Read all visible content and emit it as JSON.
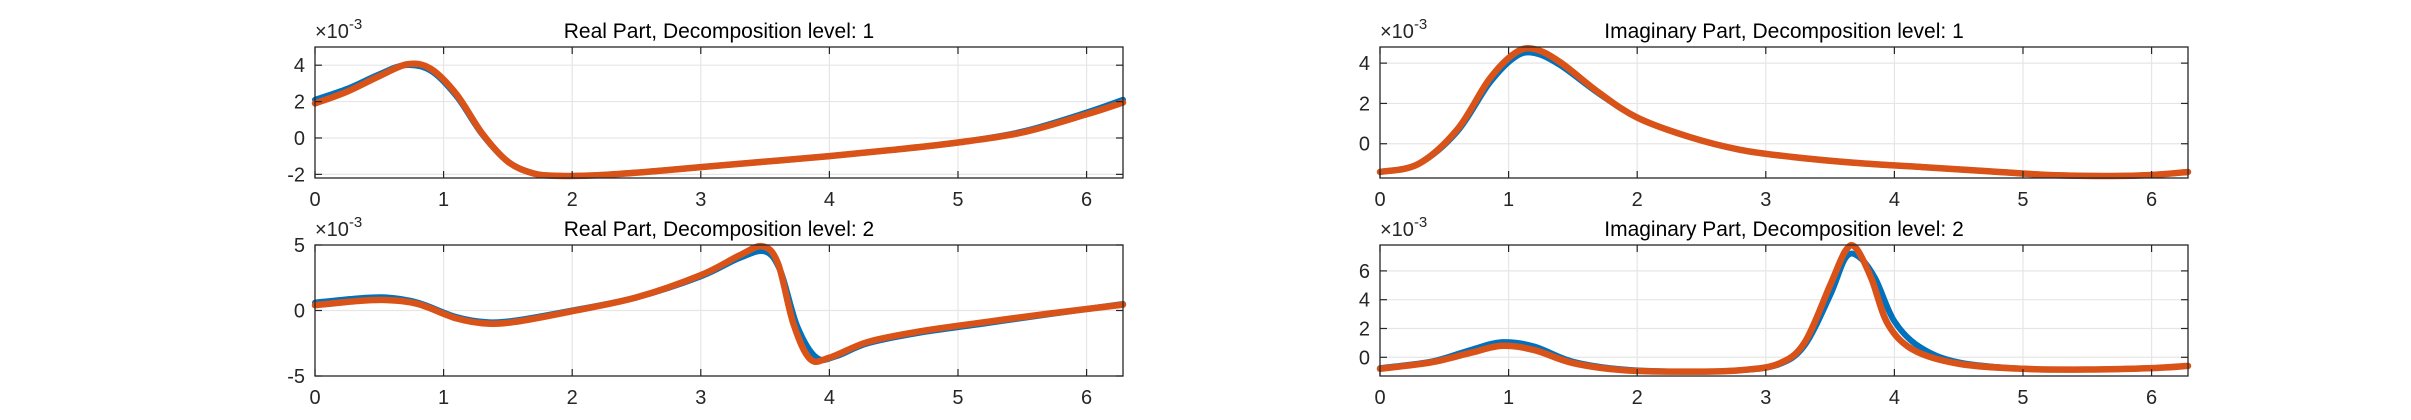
{
  "colors": {
    "series1": "#0072BD",
    "series2": "#D95319",
    "grid": "#e6e6e6",
    "axis": "#262626"
  },
  "chart_data": [
    {
      "type": "line",
      "title": "Real Part, Decomposition level: 1",
      "exponent_label": "×10",
      "exponent": "-3",
      "xlim": [
        0,
        6.2832
      ],
      "ylim": [
        -2.2,
        5.0
      ],
      "xticks": [
        0,
        1,
        2,
        3,
        4,
        5,
        6
      ],
      "yticks": [
        -2,
        0,
        2,
        4
      ],
      "grid": true,
      "series": [
        {
          "color": "#0072BD",
          "x": [
            0,
            0.25,
            0.5,
            0.7,
            0.9,
            1.1,
            1.3,
            1.5,
            1.7,
            1.9,
            2.2,
            2.6,
            3.0,
            3.5,
            4.0,
            4.5,
            5.0,
            5.5,
            6.0,
            6.2832
          ],
          "y": [
            2.1,
            2.7,
            3.5,
            4.0,
            3.7,
            2.3,
            0.2,
            -1.3,
            -1.95,
            -2.08,
            -2.05,
            -1.85,
            -1.6,
            -1.3,
            -1.0,
            -0.65,
            -0.25,
            0.35,
            1.4,
            2.1
          ]
        },
        {
          "color": "#D95319",
          "x": [
            0,
            0.25,
            0.5,
            0.72,
            0.9,
            1.1,
            1.3,
            1.5,
            1.7,
            1.9,
            2.2,
            2.6,
            3.0,
            3.5,
            4.0,
            4.5,
            5.0,
            5.5,
            6.0,
            6.2832
          ],
          "y": [
            1.9,
            2.55,
            3.4,
            4.05,
            3.8,
            2.4,
            0.25,
            -1.3,
            -1.95,
            -2.08,
            -2.05,
            -1.85,
            -1.6,
            -1.3,
            -1.0,
            -0.65,
            -0.25,
            0.3,
            1.3,
            1.95
          ]
        }
      ]
    },
    {
      "type": "line",
      "title": "Imaginary Part, Decomposition level: 1",
      "exponent_label": "×10",
      "exponent": "-3",
      "xlim": [
        0,
        6.2832
      ],
      "ylim": [
        -1.7,
        4.8
      ],
      "xticks": [
        0,
        1,
        2,
        3,
        4,
        5,
        6
      ],
      "yticks": [
        0,
        2,
        4
      ],
      "grid": true,
      "series": [
        {
          "color": "#0072BD",
          "x": [
            0,
            0.3,
            0.6,
            0.85,
            1.05,
            1.2,
            1.4,
            1.7,
            2.0,
            2.4,
            2.8,
            3.2,
            3.7,
            4.2,
            4.7,
            5.2,
            5.7,
            6.0,
            6.2832
          ],
          "y": [
            -1.4,
            -1.0,
            0.6,
            3.0,
            4.3,
            4.5,
            3.9,
            2.5,
            1.3,
            0.35,
            -0.3,
            -0.65,
            -0.95,
            -1.15,
            -1.35,
            -1.55,
            -1.6,
            -1.55,
            -1.4
          ]
        },
        {
          "color": "#D95319",
          "x": [
            0,
            0.3,
            0.6,
            0.85,
            1.05,
            1.2,
            1.4,
            1.7,
            2.0,
            2.4,
            2.8,
            3.2,
            3.7,
            4.2,
            4.7,
            5.2,
            5.7,
            6.0,
            6.2832
          ],
          "y": [
            -1.4,
            -1.0,
            0.7,
            3.2,
            4.5,
            4.7,
            4.05,
            2.55,
            1.3,
            0.35,
            -0.3,
            -0.65,
            -0.95,
            -1.15,
            -1.35,
            -1.55,
            -1.6,
            -1.55,
            -1.4
          ]
        }
      ]
    },
    {
      "type": "line",
      "title": "Real Part, Decomposition level: 2",
      "exponent_label": "×10",
      "exponent": "-3",
      "xlim": [
        0,
        6.2832
      ],
      "ylim": [
        -5,
        5
      ],
      "xticks": [
        0,
        1,
        2,
        3,
        4,
        5,
        6
      ],
      "yticks": [
        -5,
        0,
        5
      ],
      "grid": true,
      "series": [
        {
          "color": "#0072BD",
          "x": [
            0,
            0.3,
            0.55,
            0.8,
            1.1,
            1.35,
            1.6,
            2.0,
            2.5,
            3.0,
            3.3,
            3.5,
            3.62,
            3.75,
            3.9,
            4.05,
            4.3,
            4.7,
            5.2,
            5.7,
            6.2832
          ],
          "y": [
            0.6,
            0.9,
            1.0,
            0.6,
            -0.5,
            -0.9,
            -0.7,
            0.0,
            1.0,
            2.6,
            4.0,
            4.5,
            3.0,
            -1.2,
            -3.6,
            -3.5,
            -2.5,
            -1.7,
            -1.0,
            -0.3,
            0.5
          ]
        },
        {
          "color": "#D95319",
          "x": [
            0,
            0.3,
            0.55,
            0.8,
            1.1,
            1.35,
            1.6,
            2.0,
            2.5,
            3.0,
            3.3,
            3.48,
            3.6,
            3.72,
            3.85,
            4.0,
            4.3,
            4.7,
            5.2,
            5.7,
            6.2832
          ],
          "y": [
            0.4,
            0.7,
            0.8,
            0.5,
            -0.6,
            -1.0,
            -0.8,
            -0.05,
            1.0,
            2.7,
            4.2,
            4.9,
            3.6,
            -1.0,
            -3.7,
            -3.6,
            -2.4,
            -1.6,
            -0.9,
            -0.25,
            0.45
          ]
        }
      ]
    },
    {
      "type": "line",
      "title": "Imaginary Part, Decomposition level: 2",
      "exponent_label": "×10",
      "exponent": "-3",
      "xlim": [
        0,
        6.2832
      ],
      "ylim": [
        -1.3,
        7.8
      ],
      "xticks": [
        0,
        1,
        2,
        3,
        4,
        5,
        6
      ],
      "yticks": [
        0,
        2,
        4,
        6
      ],
      "grid": true,
      "series": [
        {
          "color": "#0072BD",
          "x": [
            0,
            0.4,
            0.7,
            0.95,
            1.2,
            1.5,
            1.9,
            2.4,
            2.8,
            3.1,
            3.3,
            3.5,
            3.62,
            3.72,
            3.85,
            4.0,
            4.2,
            4.5,
            5.0,
            5.5,
            6.0,
            6.2832
          ],
          "y": [
            -0.75,
            -0.3,
            0.5,
            1.05,
            0.75,
            -0.3,
            -0.85,
            -1.0,
            -0.9,
            -0.5,
            0.8,
            4.3,
            6.9,
            7.0,
            5.5,
            2.5,
            0.7,
            -0.35,
            -0.8,
            -0.85,
            -0.75,
            -0.6
          ]
        },
        {
          "color": "#D95319",
          "x": [
            0,
            0.4,
            0.7,
            0.95,
            1.2,
            1.5,
            1.9,
            2.4,
            2.8,
            3.1,
            3.3,
            3.5,
            3.62,
            3.7,
            3.82,
            3.95,
            4.15,
            4.5,
            5.0,
            5.5,
            6.0,
            6.2832
          ],
          "y": [
            -0.8,
            -0.35,
            0.3,
            0.8,
            0.5,
            -0.4,
            -0.9,
            -1.0,
            -0.9,
            -0.45,
            1.0,
            5.0,
            7.4,
            7.6,
            5.5,
            2.3,
            0.5,
            -0.45,
            -0.8,
            -0.85,
            -0.75,
            -0.6
          ]
        }
      ]
    }
  ]
}
